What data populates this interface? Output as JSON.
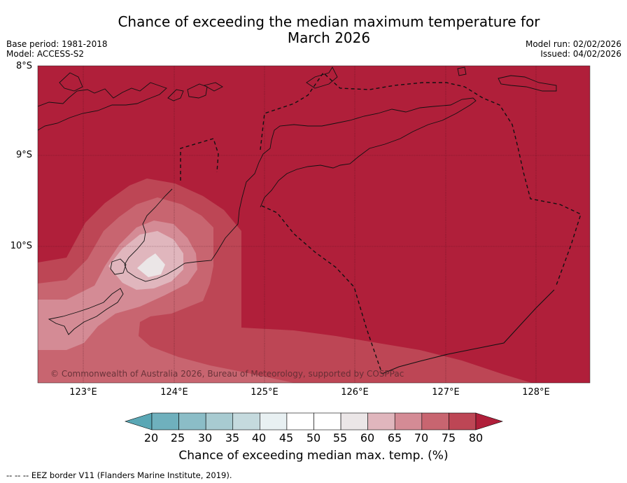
{
  "title_line1": "Chance of exceeding the median maximum temperature for",
  "title_line2": "March 2026",
  "base_period": "Base period: 1981-2018",
  "model": "Model: ACCESS-S2",
  "model_run": "Model run: 02/02/2026",
  "issued": "Issued: 04/02/2026",
  "lat_labels": [
    "8°S",
    "9°S",
    "10°S"
  ],
  "lon_labels": [
    "123°E",
    "124°E",
    "125°E",
    "126°E",
    "127°E",
    "128°E"
  ],
  "copyright": "© Commonwealth of Australia 2026, Bureau of Meteorology, supported by COSPPac",
  "colorbar": {
    "ticks": [
      "20",
      "25",
      "30",
      "35",
      "40",
      "45",
      "50",
      "55",
      "60",
      "65",
      "70",
      "75",
      "80"
    ],
    "label": "Chance of exceeding median max. temp. (%)",
    "colors": [
      "#5aa7b5",
      "#6fb0bd",
      "#8bbdc7",
      "#a8cbd1",
      "#c5dade",
      "#e8f0f2",
      "#ffffff",
      "#ffffff",
      "#ebe6e7",
      "#e0b6bd",
      "#d48b95",
      "#c86570",
      "#bd4655",
      "#b01f3a"
    ]
  },
  "contour_colors": {
    "c80plus": "#b01f3a",
    "c75": "#bd4655",
    "c70": "#c86570",
    "c65": "#d48b95",
    "c60": "#e0b6bd",
    "c55": "#ebe6e7"
  },
  "eez_note": "--  --  -- EEZ border V11 (Flanders Marine Institute, 2019)."
}
